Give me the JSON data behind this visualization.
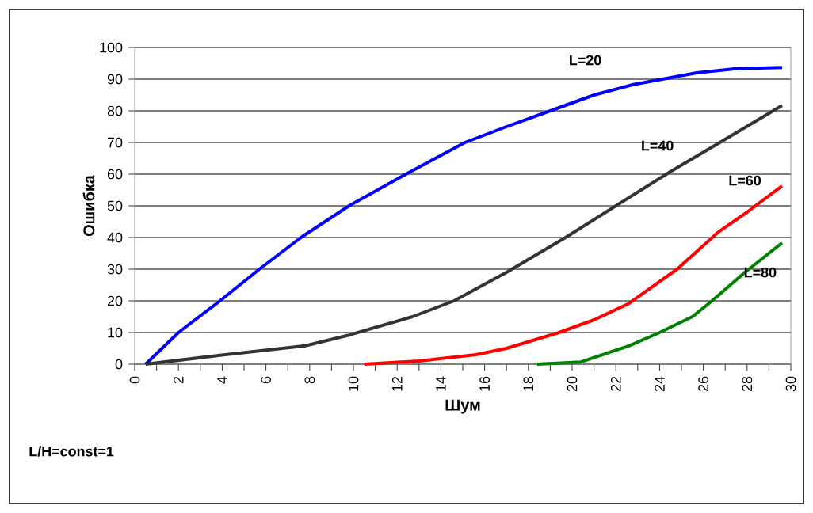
{
  "chart_data": {
    "type": "line",
    "xlabel": "Шум",
    "ylabel": "Ошибка",
    "annotations": [
      "L/H=const=1"
    ],
    "xlim": [
      0,
      30
    ],
    "ylim": [
      0,
      100
    ],
    "xticks": [
      0,
      2,
      4,
      6,
      8,
      10,
      12,
      14,
      16,
      18,
      20,
      22,
      24,
      26,
      28,
      30
    ],
    "yticks": [
      0,
      10,
      20,
      30,
      40,
      50,
      60,
      70,
      80,
      90,
      100
    ],
    "grid": "y",
    "legend": false,
    "marker": "none",
    "line_style": "solid",
    "series": [
      {
        "name": "L=20",
        "color": "#0000ff",
        "x": [
          0.5,
          2,
          3.9,
          5.7,
          7.6,
          9.8,
          12.4,
          15.1,
          17,
          19,
          21,
          22.8,
          25.7,
          27.5,
          29.6
        ],
        "values": [
          0,
          10,
          20,
          30,
          40,
          50,
          60,
          70,
          75,
          80,
          85,
          88.3,
          92,
          93.3,
          93.7
        ]
      },
      {
        "name": "L=40",
        "color": "#333333",
        "x": [
          0.5,
          3.9,
          7.8,
          9.8,
          12.7,
          14.6,
          17,
          19.7,
          22,
          24.5,
          27,
          29.6
        ],
        "values": [
          0,
          2.8,
          5.8,
          9.2,
          15,
          20,
          29,
          40,
          50,
          60.8,
          71,
          81.7
        ]
      },
      {
        "name": "L=60",
        "color": "#ff0000",
        "x": [
          10.5,
          13,
          15.6,
          17,
          19.4,
          21,
          22.6,
          24.8,
          26.7,
          28,
          29.6
        ],
        "values": [
          0,
          1,
          3,
          5,
          10,
          14,
          19.2,
          30,
          41.8,
          48,
          56.3
        ]
      },
      {
        "name": "L=80",
        "color": "#008000",
        "x": [
          18.4,
          20.4,
          22.6,
          24,
          25.5,
          26.4,
          27.9,
          29.6
        ],
        "values": [
          0,
          0.7,
          5.8,
          10,
          15,
          20,
          29,
          38.3
        ]
      }
    ]
  }
}
